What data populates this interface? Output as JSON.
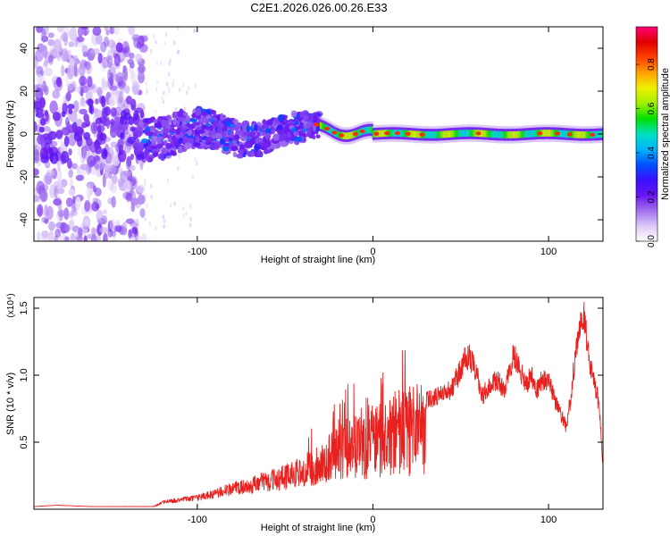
{
  "title": "C2E1.2026.026.00.26.E33",
  "chart_data": [
    {
      "type": "heatmap",
      "name": "spectrogram",
      "xlabel": "Height of straight line (km)",
      "ylabel": "Frequency (Hz)",
      "xlim": [
        -193,
        131
      ],
      "ylim": [
        -50,
        50
      ],
      "xticks": [
        -100,
        0,
        100
      ],
      "yticks": [
        -40,
        -20,
        0,
        20,
        40
      ],
      "colorbar": {
        "label": "Normalized spectral amplitude",
        "range": [
          0,
          0.97
        ],
        "ticks": [
          0.0,
          0.2,
          0.4,
          0.6,
          0.8
        ],
        "tick_labels": [
          "0.0",
          "0.2",
          "0.4",
          "0.6",
          "0.8"
        ],
        "colormap": [
          "#ffffff",
          "#dcc8f8",
          "#a070ee",
          "#6a16f0",
          "#3a10ff",
          "#0050ff",
          "#00b4ff",
          "#00e0c0",
          "#00e000",
          "#a0f000",
          "#f0f000",
          "#ffa000",
          "#ff4000",
          "#e00000",
          "#ff0078"
        ]
      },
      "description_trend": "Scattered weak energy for heights below about -130 km; a broad band near 0 Hz from -130 to -30 km; a narrow strong ridge centred near 0 Hz from -30 to 131 km"
    },
    {
      "type": "line",
      "name": "snr",
      "xlabel": "Height of straight line (km)",
      "ylabel": "SNR (10 * v/v)",
      "scale_note": "(x10⁴)",
      "xlim": [
        -193,
        131
      ],
      "ylim": [
        0,
        1.58
      ],
      "xticks": [
        -100,
        0,
        100
      ],
      "yticks": [
        0.5,
        1.0,
        1.5
      ],
      "ytick_labels": [
        "0.5",
        "1.0",
        "1.5"
      ],
      "color": "#e8201e",
      "series": [
        {
          "name": "SNR envelope",
          "x": [
            -193,
            -180,
            -160,
            -140,
            -125,
            -120,
            -100,
            -90,
            -80,
            -70,
            -60,
            -50,
            -40,
            -30,
            -20,
            -15,
            -10,
            -5,
            0,
            10,
            20,
            30,
            40,
            45,
            50,
            52,
            55,
            60,
            62,
            65,
            70,
            75,
            78,
            80,
            85,
            88,
            90,
            93,
            95,
            100,
            105,
            110,
            113,
            115,
            118,
            120,
            123,
            125,
            128,
            130,
            131
          ],
          "y": [
            0.02,
            0.03,
            0.02,
            0.02,
            0.02,
            0.06,
            0.1,
            0.14,
            0.18,
            0.22,
            0.26,
            0.3,
            0.36,
            0.44,
            0.55,
            0.6,
            0.62,
            0.6,
            0.68,
            0.75,
            0.8,
            0.85,
            0.9,
            0.95,
            1.1,
            1.18,
            1.2,
            1.02,
            0.88,
            0.95,
            1.02,
            0.95,
            1.1,
            1.22,
            1.05,
            0.98,
            1.08,
            0.9,
            1.0,
            1.02,
            0.8,
            0.65,
            0.9,
            1.2,
            1.45,
            1.55,
            1.2,
            1.05,
            0.88,
            0.6,
            0.32
          ]
        }
      ]
    }
  ]
}
